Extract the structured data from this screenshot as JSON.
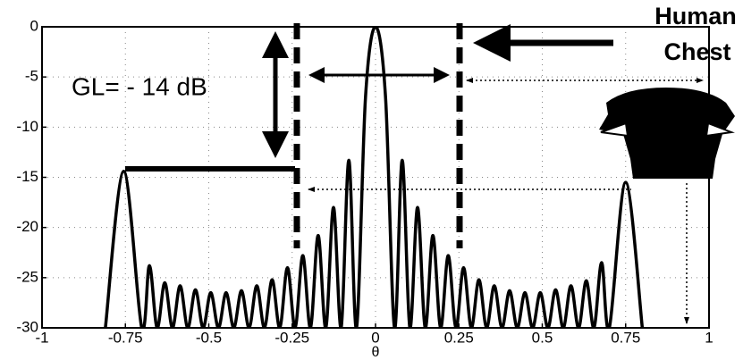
{
  "chart_data": {
    "type": "line",
    "xlabel": "θ",
    "annotations": [
      "GL= - 14 dB",
      "Human",
      "Chest"
    ],
    "xlim": [
      -1,
      1
    ],
    "ylim": [
      -30,
      0
    ],
    "xticks": [
      -1,
      -0.75,
      -0.5,
      -0.25,
      0,
      0.25,
      0.5,
      0.75,
      1
    ],
    "yticks": [
      0,
      -5,
      -10,
      -15,
      -20,
      -25,
      -30
    ],
    "grid": true,
    "series": [
      {
        "color": "#000000",
        "x": [
          -0.81,
          -0.755,
          -0.701,
          -0.678,
          -0.655,
          -0.632,
          -0.609,
          -0.586,
          -0.563,
          -0.54,
          -0.517,
          -0.494,
          -0.471,
          -0.448,
          -0.425,
          -0.402,
          -0.379,
          -0.356,
          -0.333,
          -0.31,
          -0.287,
          -0.264,
          -0.241,
          -0.218,
          -0.195,
          -0.172,
          -0.149,
          -0.126,
          -0.103,
          -0.08,
          -0.057,
          -0.03,
          0,
          0.03,
          0.057,
          0.08,
          0.103,
          0.126,
          0.149,
          0.172,
          0.195,
          0.218,
          0.241,
          0.264,
          0.287,
          0.31,
          0.333,
          0.356,
          0.379,
          0.402,
          0.425,
          0.448,
          0.471,
          0.494,
          0.517,
          0.54,
          0.563,
          0.586,
          0.609,
          0.632,
          0.655,
          0.678,
          0.701,
          0.75,
          0.8
        ],
        "values": [
          -30,
          -14.4,
          -30,
          -23.8,
          -30,
          -25.5,
          -30,
          -25.8,
          -30,
          -26.2,
          -30,
          -26.5,
          -30,
          -26.5,
          -30,
          -26.3,
          -30,
          -25.8,
          -30,
          -25.2,
          -30,
          -24,
          -30,
          -22.8,
          -30,
          -20.8,
          -30,
          -18,
          -30,
          -13.3,
          -30,
          -7,
          0,
          -7,
          -30,
          -13.3,
          -30,
          -18,
          -30,
          -20.8,
          -30,
          -22.8,
          -30,
          -24,
          -30,
          -25.2,
          -30,
          -25.8,
          -30,
          -26.3,
          -30,
          -26.5,
          -30,
          -26.5,
          -30,
          -26.2,
          -30,
          -25.8,
          -30,
          -25.3,
          -30,
          -23.5,
          -30,
          -15.5,
          -30
        ]
      }
    ]
  }
}
